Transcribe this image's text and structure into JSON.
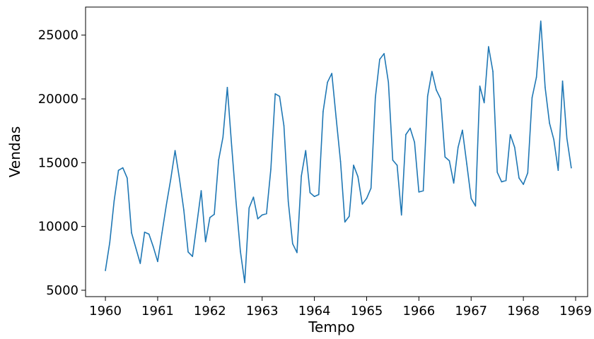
{
  "chart_data": {
    "type": "line",
    "xlabel": "Tempo",
    "ylabel": "Vendas",
    "xlim": [
      1959.62,
      1969.23
    ],
    "ylim": [
      4500,
      27200
    ],
    "x_ticks": [
      1960,
      1961,
      1962,
      1963,
      1964,
      1965,
      1966,
      1967,
      1968,
      1969
    ],
    "x_tick_labels": [
      "1960",
      "1961",
      "1962",
      "1963",
      "1964",
      "1965",
      "1966",
      "1967",
      "1968",
      "1969"
    ],
    "y_ticks": [
      5000,
      10000,
      15000,
      20000,
      25000
    ],
    "y_tick_labels": [
      "5000",
      "10000",
      "15000",
      "20000",
      "25000"
    ],
    "grid": false,
    "line_color": "#1f77b4",
    "series": [
      {
        "x_start": 1960,
        "x_step": 0.0833333,
        "values": [
          6550,
          8750,
          12000,
          14400,
          14600,
          13800,
          9500,
          8300,
          7100,
          9550,
          9400,
          8400,
          7250,
          9500,
          11700,
          13700,
          15950,
          13750,
          11300,
          8000,
          7650,
          10200,
          12800,
          8800,
          10700,
          10950,
          15200,
          17000,
          20900,
          16300,
          11950,
          8050,
          5600,
          11450,
          12300,
          10600,
          10900,
          11000,
          14500,
          20400,
          20200,
          17900,
          11950,
          8650,
          7950,
          13950,
          15950,
          12650,
          12350,
          12500,
          19000,
          21300,
          22000,
          18500,
          15100,
          10350,
          10800,
          14800,
          13900,
          11750,
          12200,
          13000,
          20100,
          23100,
          23550,
          21300,
          15200,
          14800,
          10900,
          17200,
          17700,
          16600,
          12700,
          12800,
          20200,
          22150,
          20700,
          20000,
          15450,
          15150,
          13400,
          16200,
          17550,
          14900,
          12200,
          11600,
          21000,
          19700,
          24100,
          22150,
          14250,
          13500,
          13600,
          17200,
          16200,
          13800,
          13300,
          14200,
          20100,
          21700,
          26100,
          20900,
          18100,
          16800,
          14400,
          21400,
          16900,
          14600
        ]
      }
    ]
  }
}
